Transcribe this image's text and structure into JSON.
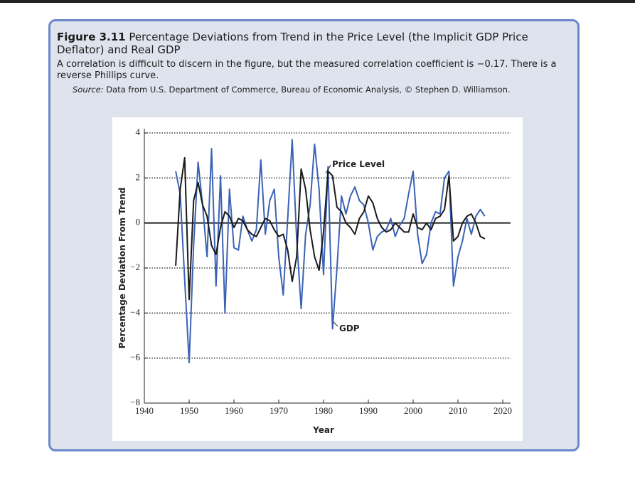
{
  "chart_data": {
    "type": "line",
    "figure_label": "Figure 3.11",
    "title": "Percentage Deviations from Trend in the Price Level (the Implicit GDP Price Deflator) and Real GDP",
    "subtitle": "A correlation is difficult to discern in the figure, but the measured correlation coefficient is −0.17. There is a reverse Phillips curve.",
    "source_label": "Source:",
    "source": "Data from U.S. Department of Commerce, Bureau of Economic Analysis, © Stephen D. Williamson.",
    "x_label": "Year",
    "y_label": "Percentage Deviation From Trend",
    "x": [
      1947,
      1948,
      1949,
      1950,
      1951,
      1952,
      1953,
      1954,
      1955,
      1956,
      1957,
      1958,
      1959,
      1960,
      1961,
      1962,
      1963,
      1964,
      1965,
      1966,
      1967,
      1968,
      1969,
      1970,
      1971,
      1972,
      1973,
      1974,
      1975,
      1976,
      1977,
      1978,
      1979,
      1980,
      1981,
      1982,
      1983,
      1984,
      1985,
      1986,
      1987,
      1988,
      1989,
      1990,
      1991,
      1992,
      1993,
      1994,
      1995,
      1996,
      1997,
      1998,
      1999,
      2000,
      2001,
      2002,
      2003,
      2004,
      2005,
      2006,
      2007,
      2008,
      2009,
      2010,
      2011,
      2012,
      2013,
      2014,
      2015,
      2016
    ],
    "series": [
      {
        "name": "Price Level",
        "color": "#1a1a1a",
        "values": [
          -1.9,
          1.5,
          2.9,
          -3.4,
          1.0,
          1.8,
          0.8,
          0.3,
          -1.0,
          -1.4,
          -0.2,
          0.5,
          0.3,
          -0.2,
          0.2,
          0.1,
          -0.3,
          -0.5,
          -0.6,
          -0.2,
          0.2,
          0.1,
          -0.3,
          -0.6,
          -0.5,
          -1.2,
          -2.6,
          -1.5,
          2.4,
          1.5,
          -0.3,
          -1.5,
          -2.1,
          -0.4,
          2.3,
          2.1,
          0.7,
          0.5,
          0.0,
          -0.2,
          -0.5,
          0.2,
          0.5,
          1.2,
          0.9,
          0.2,
          -0.2,
          -0.4,
          -0.3,
          0.0,
          -0.2,
          -0.4,
          -0.4,
          0.4,
          -0.2,
          -0.3,
          0.0,
          -0.3,
          0.2,
          0.3,
          0.6,
          2.1,
          -0.8,
          -0.6,
          0.0,
          0.3,
          0.4,
          0.0,
          -0.6,
          -0.7
        ]
      },
      {
        "name": "GDP",
        "color": "#3b62b5",
        "values": [
          2.3,
          1.3,
          -2.5,
          -6.2,
          -1.0,
          2.7,
          0.8,
          -1.5,
          3.3,
          -2.8,
          2.1,
          -4.0,
          1.5,
          -1.1,
          -1.2,
          0.3,
          -0.3,
          -0.8,
          -0.3,
          2.8,
          -0.5,
          1.0,
          1.5,
          -1.5,
          -3.2,
          0.2,
          3.7,
          -0.7,
          -3.8,
          -0.5,
          0.8,
          3.5,
          1.5,
          -2.3,
          2.5,
          -4.7,
          -2.0,
          1.2,
          0.4,
          1.2,
          1.6,
          1.0,
          0.8,
          0.0,
          -1.2,
          -0.6,
          -0.4,
          -0.3,
          0.2,
          -0.6,
          -0.1,
          0.2,
          1.3,
          2.3,
          -0.5,
          -1.8,
          -1.4,
          0.0,
          0.5,
          0.4,
          2.0,
          2.3,
          -2.8,
          -1.5,
          -0.8,
          0.2,
          -0.5,
          0.3,
          0.6,
          0.3
        ]
      }
    ],
    "xlim": [
      1940,
      2020
    ],
    "xticks": [
      1940,
      1950,
      1960,
      1970,
      1980,
      1990,
      2000,
      2010,
      2020
    ],
    "ylim": [
      -8,
      4
    ],
    "yticks": [
      {
        "value": -8,
        "label": "−8"
      },
      {
        "value": -6,
        "label": "−6"
      },
      {
        "value": -4,
        "label": "−4"
      },
      {
        "value": -2,
        "label": "−2"
      },
      0,
      2,
      4
    ],
    "grid": true
  }
}
